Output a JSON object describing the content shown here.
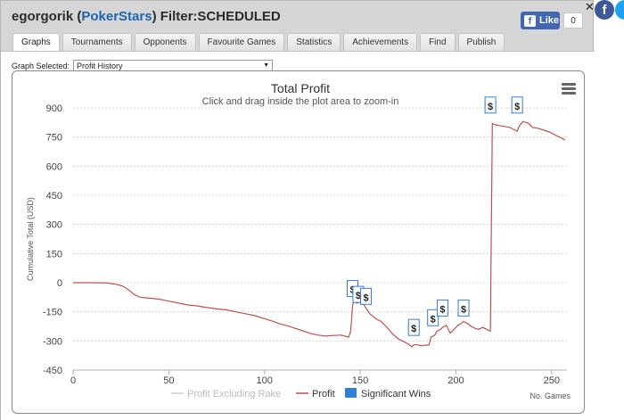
{
  "header": {
    "player": "egorgorik",
    "network": "PokerStars",
    "filter": "Filter:SCHEDULED",
    "like_label": "Like",
    "like_count": "0",
    "fb_letter": "f"
  },
  "tabs": [
    {
      "label": "Graphs"
    },
    {
      "label": "Tournaments"
    },
    {
      "label": "Opponents"
    },
    {
      "label": "Favourite Games"
    },
    {
      "label": "Statistics"
    },
    {
      "label": "Achievements"
    },
    {
      "label": "Find"
    },
    {
      "label": "Publish"
    }
  ],
  "graph_select": {
    "label": "Graph Selected:",
    "value": "Profit History"
  },
  "chart_data": {
    "type": "line",
    "title": "Total Profit",
    "subtitle": "Click and drag inside the plot area to zoom-in",
    "xlabel": "No. Games",
    "ylabel": "Cumulative Total (USD)",
    "xlim": [
      0,
      258
    ],
    "ylim": [
      -450,
      900
    ],
    "xticks": [
      0,
      50,
      100,
      150,
      200,
      250
    ],
    "yticks": [
      900,
      750,
      600,
      450,
      300,
      150,
      0,
      -150,
      -300,
      -450
    ],
    "legend": [
      {
        "name": "Profit Excluding Rake",
        "color": "#cccccc",
        "marker": "line"
      },
      {
        "name": "Profit",
        "color": "#c0504d",
        "marker": "line"
      },
      {
        "name": "Significant Wins",
        "color": "#2f7ed8",
        "marker": "box"
      }
    ],
    "series": [
      {
        "name": "Profit",
        "color": "#c0504d",
        "x": [
          0,
          10,
          18,
          22,
          24,
          26,
          28,
          30,
          32,
          35,
          40,
          45,
          50,
          55,
          60,
          65,
          70,
          75,
          80,
          85,
          90,
          95,
          100,
          104,
          108,
          112,
          116,
          120,
          124,
          128,
          132,
          136,
          140,
          144,
          145,
          146,
          147,
          148,
          150,
          152,
          153,
          155,
          158,
          161,
          164,
          167,
          170,
          173,
          175,
          177,
          178,
          180,
          182,
          184,
          186,
          187,
          189,
          190,
          192,
          193,
          195,
          197,
          199,
          201,
          202,
          204,
          206,
          208,
          210,
          212,
          214,
          216,
          217,
          218,
          219,
          220,
          222,
          225,
          228,
          230,
          232,
          233,
          235,
          238,
          240,
          243,
          246,
          249,
          252,
          255,
          257
        ],
        "values": [
          0,
          0,
          -2,
          -8,
          -12,
          -18,
          -30,
          -45,
          -62,
          -75,
          -80,
          -85,
          -95,
          -105,
          -115,
          -120,
          -128,
          -135,
          -140,
          -150,
          -160,
          -170,
          -185,
          -198,
          -212,
          -222,
          -235,
          -248,
          -262,
          -270,
          -275,
          -272,
          -270,
          -280,
          -250,
          -120,
          -80,
          -105,
          -100,
          -115,
          -130,
          -160,
          -185,
          -200,
          -230,
          -265,
          -290,
          -305,
          -315,
          -330,
          -320,
          -320,
          -325,
          -322,
          -320,
          -280,
          -270,
          -250,
          -240,
          -230,
          -220,
          -260,
          -240,
          -220,
          -215,
          -200,
          -210,
          -225,
          -235,
          -240,
          -230,
          -240,
          -245,
          -250,
          820,
          815,
          810,
          805,
          800,
          790,
          780,
          805,
          830,
          820,
          800,
          795,
          785,
          775,
          760,
          745,
          735
        ]
      }
    ],
    "significant_wins": [
      {
        "x": 146,
        "y": -35,
        "label": "$"
      },
      {
        "x": 149,
        "y": -65,
        "label": "$"
      },
      {
        "x": 153,
        "y": -75,
        "label": "$"
      },
      {
        "x": 178,
        "y": -235,
        "label": "$"
      },
      {
        "x": 188,
        "y": -185,
        "label": "$"
      },
      {
        "x": 193,
        "y": -135,
        "label": "$"
      },
      {
        "x": 204,
        "y": -135,
        "label": "$"
      },
      {
        "x": 218,
        "y": 910,
        "label": "$"
      },
      {
        "x": 232,
        "y": 910,
        "label": "$"
      }
    ]
  }
}
